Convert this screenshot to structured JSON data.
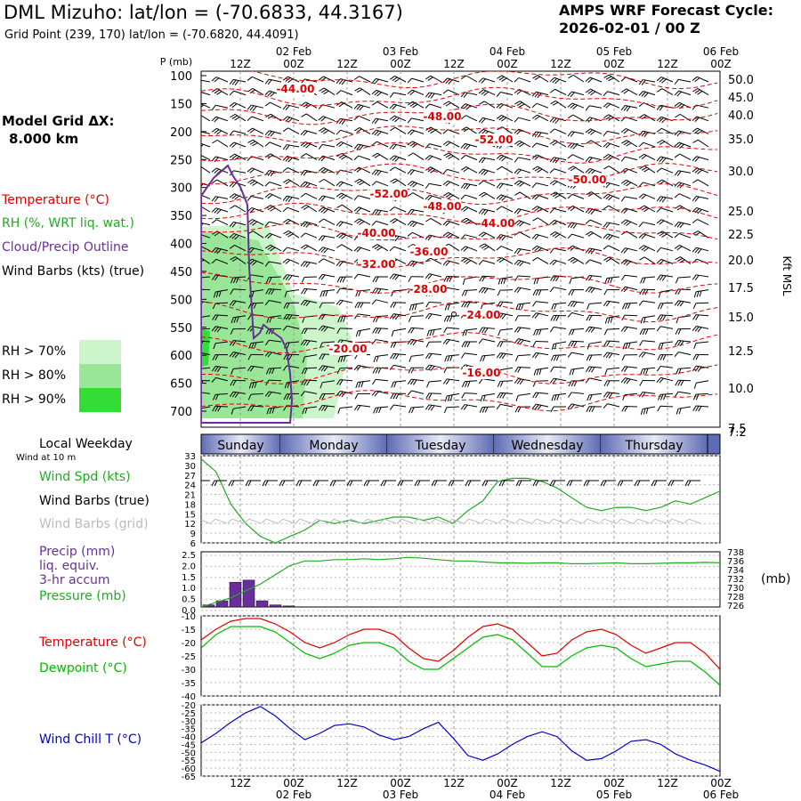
{
  "header": {
    "title": "DML Mizuho:  lat/lon = (-70.6833, 44.3167)",
    "grid_point": "Grid Point (239, 170) lat/lon = (-70.6820, 44.4091)",
    "forecast_line1": "AMPS WRF Forecast Cycle:",
    "forecast_line2": "2026-02-01 / 00  Z"
  },
  "left_panel": {
    "model_grid_label": "Model Grid ΔX:",
    "model_grid_value": "8.000 km",
    "legend": [
      {
        "text": "Temperature (°C)",
        "color": "#e00000"
      },
      {
        "text": "RH (%, WRT liq. wat.)",
        "color": "#22aa22"
      },
      {
        "text": "Cloud/Precip Outline",
        "color": "#6a2e9a"
      },
      {
        "text": "Wind Barbs (kts) (true)",
        "color": "#000000"
      }
    ],
    "rh_legend": [
      {
        "text": "RH > 70%",
        "color": "#ccf5cc"
      },
      {
        "text": "RH > 80%",
        "color": "#99e699"
      },
      {
        "text": "RH > 90%",
        "color": "#33dd33"
      }
    ]
  },
  "time_axis": {
    "top_dates": [
      "02 Feb",
      "03 Feb",
      "04 Feb",
      "05 Feb",
      "06 Feb"
    ],
    "hour_ticks": [
      "12Z",
      "00Z",
      "12Z",
      "00Z",
      "12Z",
      "00Z",
      "12Z",
      "00Z",
      "12Z",
      "00Z"
    ],
    "bottom_dates": [
      "02 Feb",
      "03 Feb",
      "04 Feb",
      "05 Feb",
      "06 Feb"
    ]
  },
  "weekday_bar": {
    "label": "Local Weekday",
    "sub_label": "Wind at 10 m",
    "days": [
      "Sunday",
      "Monday",
      "Tuesday",
      "Wednesday",
      "Thursday"
    ]
  },
  "colors": {
    "temp": "#e00000",
    "rh": "#22aa22",
    "cloud": "#6a2e9a",
    "wind": "#000000",
    "dew": "#00bb00",
    "windchill": "#0000cc",
    "pressure": "#22aa22",
    "precip": "#6a2e9a"
  },
  "chart_data": [
    {
      "type": "heatmap",
      "title": "",
      "ylabel": "P (mb)",
      "ylabel_right": "Kft MSL",
      "yaxis_ticks": [
        "100",
        "150",
        "200",
        "250",
        "300",
        "350",
        "400",
        "450",
        "500",
        "550",
        "600",
        "650",
        "700"
      ],
      "right_ticks": [
        "50.0",
        "45.0",
        "40.0",
        "35.0",
        "30.0",
        "25.0",
        "22.5",
        "20.0",
        "17.5",
        "15.0",
        "12.5",
        "10.0",
        "7.5",
        "7.2"
      ],
      "temperature_contour_labels": [
        "-44.00",
        "-48.00",
        "-52.00",
        "-50.00",
        "-52.00",
        "-48.00",
        "-44.00",
        "-40.00",
        "-36.00",
        "-32.00",
        "-28.00",
        "-24.00",
        "-20.00",
        "-16.00"
      ],
      "legend": [
        "Temperature (°C)",
        "RH (%, WRT liq. wat.)",
        "Cloud/Precip Outline",
        "Wind Barbs (kts) (true)"
      ]
    },
    {
      "type": "line",
      "title": "",
      "legend": [
        "Wind Spd (kts)",
        "Wind Barbs (true)",
        "Wind Barbs (grid)"
      ],
      "yaxis_ticks": [
        "33",
        "30",
        "27",
        "24",
        "21",
        "18",
        "15",
        "12",
        "9",
        "6"
      ],
      "ylim": [
        6,
        33
      ],
      "series": [
        {
          "name": "Wind Spd (kts)",
          "values": [
            32,
            28,
            18,
            12,
            8,
            6,
            8,
            10,
            13,
            12,
            13,
            12,
            13,
            14,
            14,
            13,
            14,
            12,
            16,
            19,
            25,
            26,
            26,
            25,
            23,
            20,
            17,
            16,
            17,
            17,
            16,
            17,
            19,
            18,
            20,
            22
          ]
        }
      ]
    },
    {
      "type": "bar",
      "title": "",
      "legend": [
        "Precip (mm)",
        "liq. equiv.",
        "3-hr accum",
        "Pressure (mb)"
      ],
      "ylabel_right": "(mb)",
      "yaxis_left": [
        "2.5",
        "2.0",
        "1.5",
        "1.0",
        "0.5",
        "0.0"
      ],
      "yaxis_right": [
        "738",
        "736",
        "734",
        "732",
        "730",
        "728",
        "726"
      ],
      "series": [
        {
          "name": "Precip (mm)",
          "values": [
            0.1,
            0.3,
            1.2,
            1.3,
            0.3,
            0.1,
            0.05,
            0
          ]
        },
        {
          "name": "Pressure (mb)",
          "values": [
            726,
            727,
            728,
            729.5,
            731,
            733,
            735,
            736,
            736,
            736.3,
            736.3,
            736.5,
            736.3,
            736.5,
            736.8,
            736.6,
            736.3,
            736,
            736,
            735.8,
            735.6,
            735.6,
            735.5,
            735.6,
            735.6,
            735.4,
            735.4,
            735.5,
            735.6,
            735.4,
            735.4,
            735.5,
            735.6,
            735.6,
            735.7,
            735.6
          ]
        }
      ]
    },
    {
      "type": "line",
      "title": "",
      "legend": [
        "Temperature (°C)",
        "Dewpoint (°C)"
      ],
      "yaxis_ticks": [
        "-10",
        "-15",
        "-20",
        "-25",
        "-30",
        "-35",
        "-40"
      ],
      "ylim": [
        -40,
        -10
      ],
      "series": [
        {
          "name": "Temperature (°C)",
          "values": [
            -19,
            -15,
            -12,
            -11,
            -11,
            -13,
            -16,
            -20,
            -22,
            -20,
            -17,
            -15,
            -15,
            -17,
            -22,
            -26,
            -27,
            -23,
            -18,
            -14,
            -13,
            -15,
            -20,
            -25,
            -24,
            -19,
            -16,
            -15,
            -17,
            -21,
            -24,
            -22,
            -20,
            -20,
            -24,
            -30
          ]
        },
        {
          "name": "Dewpoint (°C)",
          "values": [
            -22,
            -17,
            -14,
            -14,
            -14,
            -16,
            -20,
            -24,
            -26,
            -24,
            -21,
            -20,
            -20,
            -22,
            -27,
            -30,
            -30,
            -26,
            -22,
            -18,
            -17,
            -19,
            -24,
            -29,
            -29,
            -25,
            -22,
            -21,
            -22,
            -26,
            -29,
            -28,
            -27,
            -27,
            -31,
            -36
          ]
        }
      ]
    },
    {
      "type": "line",
      "title": "",
      "legend": [
        "Wind Chill T (°C)"
      ],
      "yaxis_ticks": [
        "-20",
        "-25",
        "-30",
        "-35",
        "-40",
        "-45",
        "-50",
        "-55",
        "-60",
        "-65"
      ],
      "ylim": [
        -65,
        -20
      ],
      "series": [
        {
          "name": "Wind Chill T (°C)",
          "values": [
            -44,
            -38,
            -31,
            -25,
            -21,
            -27,
            -35,
            -42,
            -38,
            -33,
            -32,
            -34,
            -39,
            -42,
            -40,
            -35,
            -31,
            -41,
            -52,
            -55,
            -51,
            -45,
            -40,
            -37,
            -40,
            -49,
            -55,
            -54,
            -49,
            -43,
            -42,
            -45,
            -51,
            -55,
            -58,
            -62
          ]
        }
      ]
    }
  ]
}
